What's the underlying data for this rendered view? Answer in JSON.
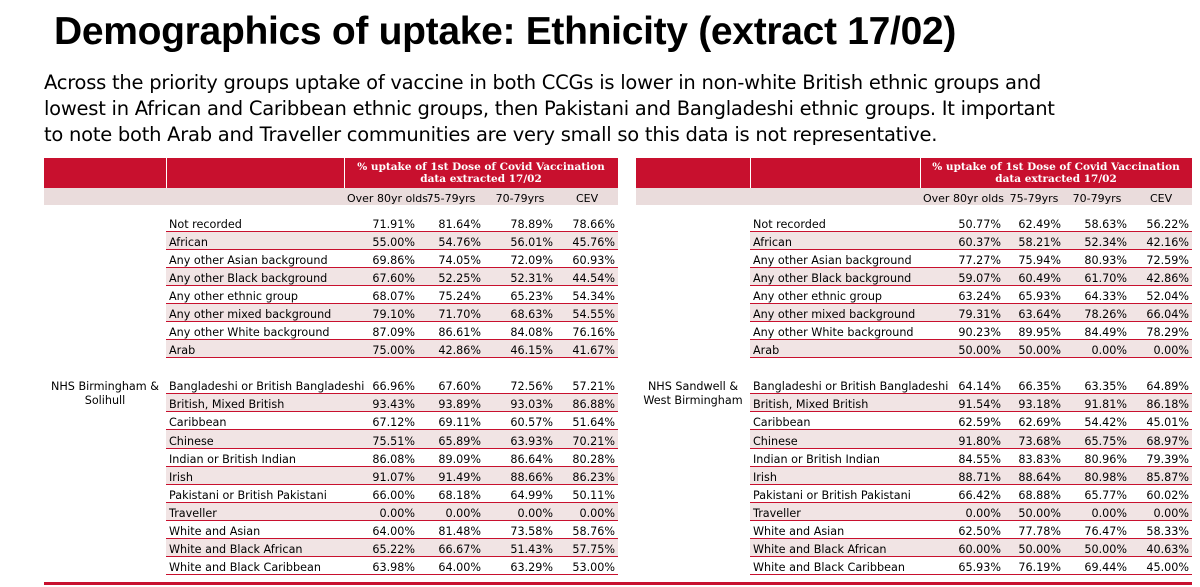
{
  "title": "Demographics of uptake: Ethnicity (extract 17/02)",
  "intro_lines": [
    "Across the priority groups uptake of vaccine in both CCGs is lower in non-white British ethnic groups and",
    "lowest in African and Caribbean ethnic groups, then Pakistani and Bangladeshi ethnic groups. It important",
    "to note both Arab and Traveller communities are very small so this data is not representative."
  ],
  "colors": {
    "accent": "#c8102e",
    "row_alt": "#f1e4e4",
    "subheader": "#eadcdc"
  },
  "tables": [
    {
      "header": "% uptake of 1st Dose of Covid Vaccination data extracted 17/02",
      "columns": [
        "Over 80yr olds",
        "75-79yrs",
        "70-79yrs",
        "CEV"
      ],
      "org": "NHS Birmingham & Solihull",
      "rows": [
        {
          "label": "Not recorded",
          "v": [
            "71.91%",
            "81.64%",
            "78.89%",
            "78.66%"
          ]
        },
        {
          "label": "African",
          "v": [
            "55.00%",
            "54.76%",
            "56.01%",
            "45.76%"
          ]
        },
        {
          "label": "Any other Asian background",
          "v": [
            "69.86%",
            "74.05%",
            "72.09%",
            "60.93%"
          ]
        },
        {
          "label": "Any other Black background",
          "v": [
            "67.60%",
            "52.25%",
            "52.31%",
            "44.54%"
          ]
        },
        {
          "label": "Any other ethnic group",
          "v": [
            "68.07%",
            "75.24%",
            "65.23%",
            "54.34%"
          ]
        },
        {
          "label": "Any other mixed background",
          "v": [
            "79.10%",
            "71.70%",
            "68.63%",
            "54.55%"
          ]
        },
        {
          "label": "Any other White background",
          "v": [
            "87.09%",
            "86.61%",
            "84.08%",
            "76.16%"
          ]
        },
        {
          "label": "Arab",
          "v": [
            "75.00%",
            "42.86%",
            "46.15%",
            "41.67%"
          ]
        },
        {
          "label": "Bangladeshi or British Bangladeshi",
          "v": [
            "66.96%",
            "67.60%",
            "72.56%",
            "57.21%"
          ]
        },
        {
          "label": "British, Mixed British",
          "v": [
            "93.43%",
            "93.89%",
            "93.03%",
            "86.88%"
          ]
        },
        {
          "label": "Caribbean",
          "v": [
            "67.12%",
            "69.11%",
            "60.57%",
            "51.64%"
          ]
        },
        {
          "label": "Chinese",
          "v": [
            "75.51%",
            "65.89%",
            "63.93%",
            "70.21%"
          ]
        },
        {
          "label": "Indian or British Indian",
          "v": [
            "86.08%",
            "89.09%",
            "86.64%",
            "80.28%"
          ]
        },
        {
          "label": "Irish",
          "v": [
            "91.07%",
            "91.49%",
            "88.66%",
            "86.23%"
          ]
        },
        {
          "label": "Pakistani or British Pakistani",
          "v": [
            "66.00%",
            "68.18%",
            "64.99%",
            "50.11%"
          ]
        },
        {
          "label": "Traveller",
          "v": [
            "0.00%",
            "0.00%",
            "0.00%",
            "0.00%"
          ]
        },
        {
          "label": "White and Asian",
          "v": [
            "64.00%",
            "81.48%",
            "73.58%",
            "58.76%"
          ]
        },
        {
          "label": "White and Black African",
          "v": [
            "65.22%",
            "66.67%",
            "51.43%",
            "57.75%"
          ]
        },
        {
          "label": "White and Black Caribbean",
          "v": [
            "63.98%",
            "64.00%",
            "63.29%",
            "53.00%"
          ]
        }
      ]
    },
    {
      "header": "% uptake of 1st Dose of Covid Vaccination data extracted 17/02",
      "columns": [
        "Over 80yr olds",
        "75-79yrs",
        "70-79yrs",
        "CEV"
      ],
      "org": "NHS Sandwell & West Birmingham",
      "rows": [
        {
          "label": "Not recorded",
          "v": [
            "50.77%",
            "62.49%",
            "58.63%",
            "56.22%"
          ]
        },
        {
          "label": "African",
          "v": [
            "60.37%",
            "58.21%",
            "52.34%",
            "42.16%"
          ]
        },
        {
          "label": "Any other Asian background",
          "v": [
            "77.27%",
            "75.94%",
            "80.93%",
            "72.59%"
          ]
        },
        {
          "label": "Any other Black background",
          "v": [
            "59.07%",
            "60.49%",
            "61.70%",
            "42.86%"
          ]
        },
        {
          "label": "Any other ethnic group",
          "v": [
            "63.24%",
            "65.93%",
            "64.33%",
            "52.04%"
          ]
        },
        {
          "label": "Any other mixed background",
          "v": [
            "79.31%",
            "63.64%",
            "78.26%",
            "66.04%"
          ]
        },
        {
          "label": "Any other White background",
          "v": [
            "90.23%",
            "89.95%",
            "84.49%",
            "78.29%"
          ]
        },
        {
          "label": "Arab",
          "v": [
            "50.00%",
            "50.00%",
            "0.00%",
            "0.00%"
          ]
        },
        {
          "label": "Bangladeshi or British Bangladeshi",
          "v": [
            "64.14%",
            "66.35%",
            "63.35%",
            "64.89%"
          ]
        },
        {
          "label": "British, Mixed British",
          "v": [
            "91.54%",
            "93.18%",
            "91.81%",
            "86.18%"
          ]
        },
        {
          "label": "Caribbean",
          "v": [
            "62.59%",
            "62.69%",
            "54.42%",
            "45.01%"
          ]
        },
        {
          "label": "Chinese",
          "v": [
            "91.80%",
            "73.68%",
            "65.75%",
            "68.97%"
          ]
        },
        {
          "label": "Indian or British Indian",
          "v": [
            "84.55%",
            "83.83%",
            "80.96%",
            "79.39%"
          ]
        },
        {
          "label": "Irish",
          "v": [
            "88.71%",
            "88.64%",
            "80.98%",
            "85.87%"
          ]
        },
        {
          "label": "Pakistani or British Pakistani",
          "v": [
            "66.42%",
            "68.88%",
            "65.77%",
            "60.02%"
          ]
        },
        {
          "label": "Traveller",
          "v": [
            "0.00%",
            "50.00%",
            "0.00%",
            "0.00%"
          ]
        },
        {
          "label": "White and Asian",
          "v": [
            "62.50%",
            "77.78%",
            "76.47%",
            "58.33%"
          ]
        },
        {
          "label": "White and Black African",
          "v": [
            "60.00%",
            "50.00%",
            "50.00%",
            "40.63%"
          ]
        },
        {
          "label": "White and Black Caribbean",
          "v": [
            "65.93%",
            "76.19%",
            "69.44%",
            "45.00%"
          ]
        }
      ]
    }
  ]
}
